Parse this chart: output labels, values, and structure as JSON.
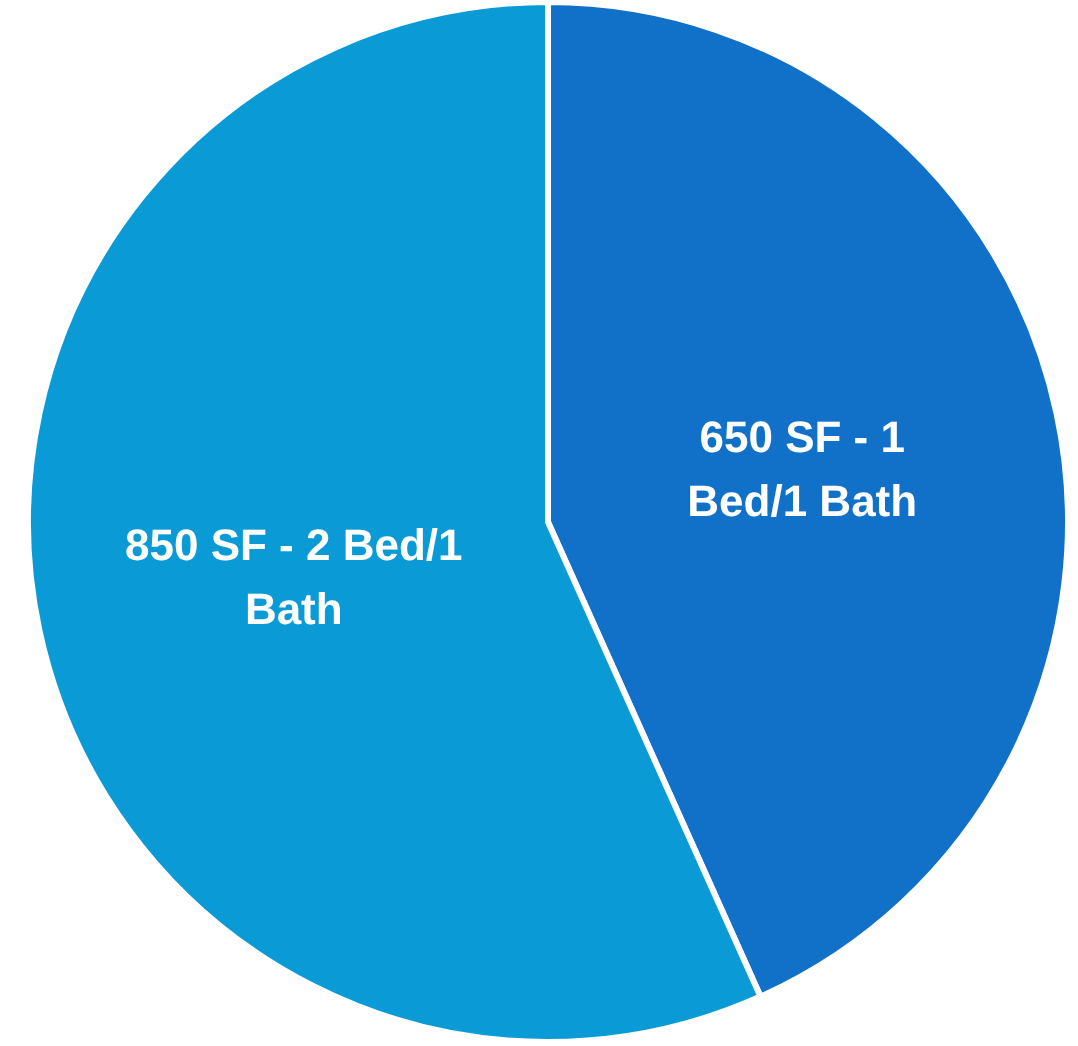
{
  "chart_data": {
    "type": "pie",
    "categories": [
      "650 SF - 1 Bed/1 Bath",
      "850 SF - 2 Bed/1 Bath"
    ],
    "values": [
      43.3,
      56.7
    ],
    "colors": [
      "#1170c8",
      "#0a9bd6"
    ]
  }
}
